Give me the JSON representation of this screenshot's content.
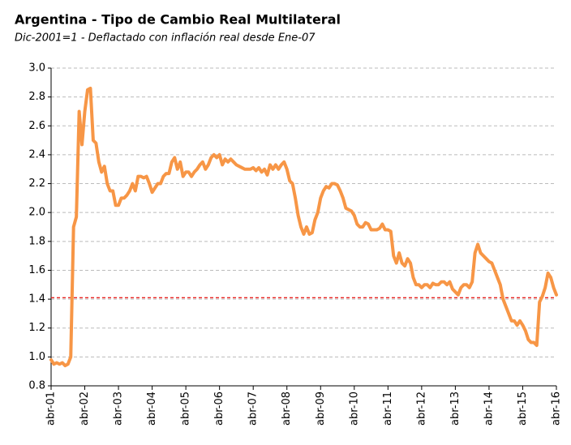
{
  "chart_data": {
    "type": "line",
    "title": "Argentina - Tipo de Cambio  Real Multilateral",
    "subtitle": "Dic-2001=1 - Deflactado con inflación real desde Ene-07",
    "categories": [
      "abr-01",
      null,
      null,
      null,
      null,
      null,
      null,
      null,
      null,
      null,
      null,
      null,
      "abr-02",
      null,
      null,
      null,
      null,
      null,
      null,
      null,
      null,
      null,
      null,
      null,
      "abr-03",
      null,
      null,
      null,
      null,
      null,
      null,
      null,
      null,
      null,
      null,
      null,
      "abr-04",
      null,
      null,
      null,
      null,
      null,
      null,
      null,
      null,
      null,
      null,
      null,
      "abr-05",
      null,
      null,
      null,
      null,
      null,
      null,
      null,
      null,
      null,
      null,
      null,
      "abr-06",
      null,
      null,
      null,
      null,
      null,
      null,
      null,
      null,
      null,
      null,
      null,
      "abr-07",
      null,
      null,
      null,
      null,
      null,
      null,
      null,
      null,
      null,
      null,
      null,
      "abr-08",
      null,
      null,
      null,
      null,
      null,
      null,
      null,
      null,
      null,
      null,
      null,
      "abr-09",
      null,
      null,
      null,
      null,
      null,
      null,
      null,
      null,
      null,
      null,
      null,
      "abr-10",
      null,
      null,
      null,
      null,
      null,
      null,
      null,
      null,
      null,
      null,
      null,
      "abr-11",
      null,
      null,
      null,
      null,
      null,
      null,
      null,
      null,
      null,
      null,
      null,
      "abr-12",
      null,
      null,
      null,
      null,
      null,
      null,
      null,
      null,
      null,
      null,
      null,
      "abr-13",
      null,
      null,
      null,
      null,
      null,
      null,
      null,
      null,
      null,
      null,
      null,
      "abr-14",
      null,
      null,
      null,
      null,
      null,
      null,
      null,
      null,
      null,
      null,
      null,
      "abr-15",
      null,
      null,
      null,
      null,
      null,
      null,
      null,
      null,
      null,
      null,
      null,
      "abr-16"
    ],
    "series": [
      {
        "color": "#f79646",
        "values": [
          0.98,
          0.95,
          0.96,
          0.95,
          0.96,
          0.94,
          0.95,
          1.0,
          1.9,
          1.97,
          2.7,
          2.47,
          2.7,
          2.85,
          2.86,
          2.5,
          2.48,
          2.35,
          2.28,
          2.32,
          2.2,
          2.15,
          2.15,
          2.05,
          2.05,
          2.1,
          2.1,
          2.12,
          2.15,
          2.2,
          2.15,
          2.25,
          2.25,
          2.24,
          2.25,
          2.2,
          2.14,
          2.17,
          2.2,
          2.2,
          2.25,
          2.27,
          2.27,
          2.35,
          2.38,
          2.3,
          2.35,
          2.25,
          2.28,
          2.28,
          2.25,
          2.28,
          2.3,
          2.33,
          2.35,
          2.3,
          2.33,
          2.38,
          2.4,
          2.38,
          2.4,
          2.33,
          2.37,
          2.35,
          2.37,
          2.35,
          2.33,
          2.32,
          2.31,
          2.3,
          2.3,
          2.3,
          2.31,
          2.29,
          2.31,
          2.28,
          2.3,
          2.26,
          2.33,
          2.3,
          2.33,
          2.3,
          2.33,
          2.35,
          2.3,
          2.22,
          2.2,
          2.1,
          1.98,
          1.9,
          1.85,
          1.9,
          1.85,
          1.86,
          1.95,
          2.0,
          2.1,
          2.15,
          2.18,
          2.17,
          2.2,
          2.2,
          2.19,
          2.15,
          2.1,
          2.03,
          2.02,
          2.01,
          1.98,
          1.92,
          1.9,
          1.9,
          1.93,
          1.92,
          1.88,
          1.88,
          1.88,
          1.89,
          1.92,
          1.88,
          1.88,
          1.87,
          1.7,
          1.65,
          1.72,
          1.65,
          1.63,
          1.68,
          1.65,
          1.55,
          1.5,
          1.5,
          1.48,
          1.5,
          1.5,
          1.48,
          1.51,
          1.5,
          1.5,
          1.52,
          1.52,
          1.5,
          1.52,
          1.47,
          1.45,
          1.43,
          1.48,
          1.5,
          1.5,
          1.48,
          1.52,
          1.72,
          1.78,
          1.72,
          1.7,
          1.68,
          1.66,
          1.65,
          1.6,
          1.55,
          1.5,
          1.4,
          1.35,
          1.3,
          1.25,
          1.25,
          1.22,
          1.25,
          1.22,
          1.18,
          1.12,
          1.1,
          1.1,
          1.08,
          1.38,
          1.42,
          1.48,
          1.58,
          1.55,
          1.48,
          1.43
        ]
      }
    ],
    "ylim": [
      0.8,
      3.0
    ],
    "yticks": [
      0.8,
      {
        "value": 1,
        "label": "1.0"
      },
      1.2,
      1.4,
      1.6,
      1.8,
      {
        "value": 2,
        "label": "2.0"
      },
      2.2,
      2.4,
      2.6,
      2.8,
      {
        "value": 3,
        "label": "3.0"
      }
    ],
    "grid": true,
    "reference_line": {
      "value": 1.41,
      "color": "#e8211e"
    }
  }
}
